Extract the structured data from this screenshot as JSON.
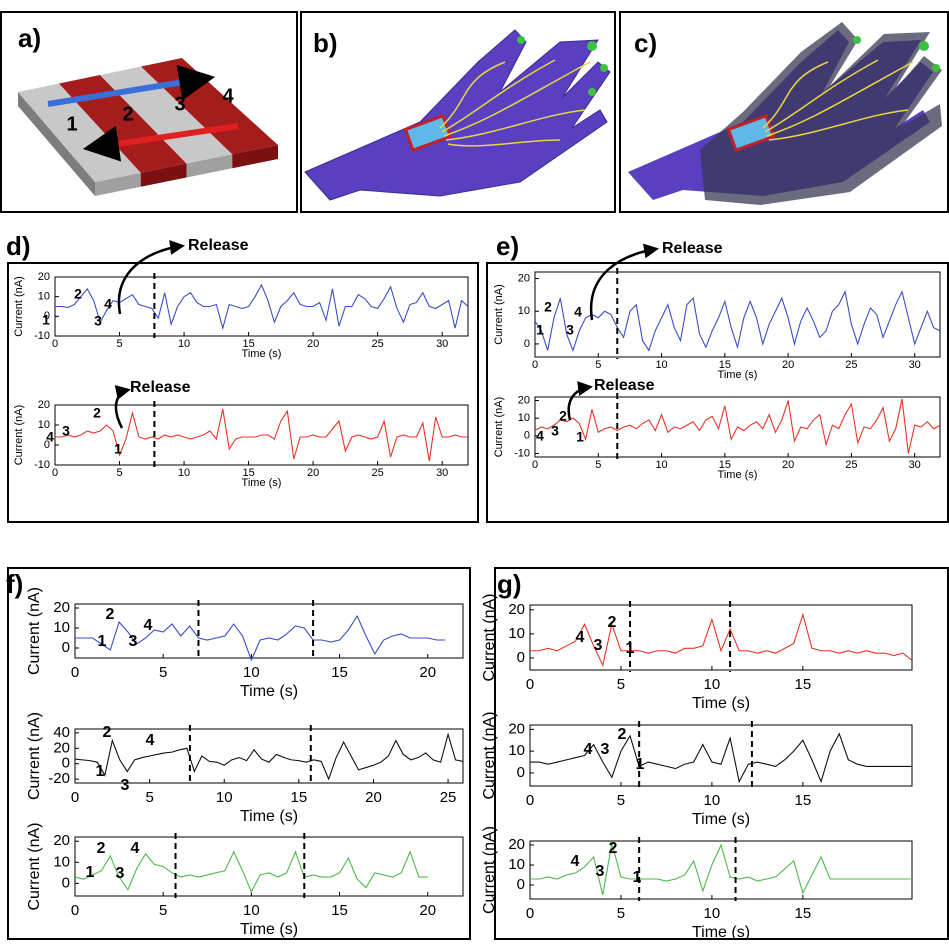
{
  "panel_labels": [
    "a)",
    "b)",
    "c)",
    "d)",
    "e)",
    "f)",
    "g)"
  ],
  "block_numbers": [
    "1",
    "2",
    "3",
    "4"
  ],
  "chart_data": [
    {
      "type": "line",
      "xlabel": "Time (s)",
      "ylabel": "Current (nA)",
      "color": "#3b4fc4",
      "xlim": [
        0,
        32
      ],
      "ylim": [
        -10,
        20
      ],
      "xticks": [
        0,
        5,
        10,
        15,
        20,
        25,
        30
      ],
      "yticks": [
        -10,
        0,
        10,
        20
      ],
      "vlines": [
        7.7
      ],
      "annotations": [
        "1",
        "2",
        "3",
        "4",
        "Release"
      ],
      "x": [
        0,
        0.5,
        1,
        1.5,
        2,
        2.5,
        3,
        3.5,
        4,
        4.5,
        5,
        5.5,
        6,
        6.5,
        7,
        7.5,
        8,
        8.5,
        9,
        9.5,
        10,
        10.5,
        11,
        11.5,
        12,
        12.5,
        13,
        13.5,
        14,
        14.5,
        15,
        15.5,
        16,
        16.5,
        17,
        17.5,
        18,
        18.5,
        19,
        19.5,
        20,
        20.5,
        21,
        21.5,
        22,
        22.5,
        23,
        23.5,
        24,
        24.5,
        25,
        25.5,
        26,
        26.5,
        27,
        27.5,
        28,
        28.5,
        29,
        29.5,
        30,
        30.5,
        31,
        31.5,
        32
      ],
      "values": [
        5,
        5,
        4.5,
        6,
        10,
        14,
        8,
        -3,
        3,
        8,
        7,
        9,
        11,
        6,
        5,
        4,
        -1,
        12,
        -4,
        5,
        10,
        12,
        7,
        5,
        5,
        6,
        -6,
        6,
        5,
        4,
        5,
        10,
        16,
        8,
        -3,
        5,
        8,
        12,
        6,
        5,
        5,
        7,
        -2,
        14,
        -5,
        5,
        5,
        11,
        9,
        5,
        4,
        9,
        15,
        4,
        -3,
        6,
        7,
        12,
        5,
        4,
        6,
        8,
        -6,
        8,
        5
      ]
    },
    {
      "type": "line",
      "xlabel": "Time (s)",
      "ylabel": "Current (nA)",
      "color": "#e8352a",
      "xlim": [
        0,
        32
      ],
      "ylim": [
        -10,
        20
      ],
      "xticks": [
        0,
        5,
        10,
        15,
        20,
        25,
        30
      ],
      "yticks": [
        -10,
        0,
        10,
        20
      ],
      "vlines": [
        7.7
      ],
      "annotations": [
        "4",
        "3",
        "2",
        "1",
        "Release"
      ],
      "x": [
        0,
        0.5,
        1,
        1.5,
        2,
        2.5,
        3,
        3.5,
        4,
        4.5,
        5,
        5.5,
        6,
        6.5,
        7,
        7.5,
        8,
        8.5,
        9,
        9.5,
        10,
        10.5,
        11,
        11.5,
        12,
        12.5,
        13,
        13.5,
        14,
        14.5,
        15,
        15.5,
        16,
        16.5,
        17,
        17.5,
        18,
        18.5,
        19,
        19.5,
        20,
        20.5,
        21,
        21.5,
        22,
        22.5,
        23,
        23.5,
        24,
        24.5,
        25,
        25.5,
        26,
        26.5,
        27,
        27.5,
        28,
        28.5,
        29,
        29.5,
        30,
        30.5,
        31,
        31.5,
        32
      ],
      "values": [
        4,
        4,
        5,
        4,
        5,
        7,
        6,
        7,
        10,
        7,
        -5,
        3,
        16,
        4,
        3,
        4,
        3,
        5,
        4,
        5,
        4,
        3,
        4,
        5,
        7,
        3,
        18,
        -2,
        3,
        4,
        4,
        4,
        5,
        5,
        3,
        12,
        17,
        -7,
        4,
        4,
        5,
        4,
        4,
        8,
        12,
        -3,
        4,
        5,
        4,
        3,
        4,
        12,
        -6,
        4,
        5,
        4,
        4,
        11,
        -8,
        14,
        4,
        4,
        5,
        4,
        4
      ]
    },
    {
      "type": "line",
      "xlabel": "Time (s)",
      "ylabel": "Current (nA)",
      "color": "#3b4fc4",
      "xlim": [
        0,
        32
      ],
      "ylim": [
        -4,
        22
      ],
      "xticks": [
        0,
        5,
        10,
        15,
        20,
        25,
        30
      ],
      "yticks": [
        0,
        10,
        20
      ],
      "vlines": [
        6.5
      ],
      "annotations": [
        "1",
        "2",
        "3",
        "4",
        "Release"
      ],
      "x": [
        0,
        0.5,
        1,
        1.5,
        2,
        2.5,
        3,
        3.5,
        4,
        4.5,
        5,
        5.5,
        6,
        6.5,
        7,
        7.5,
        8,
        8.5,
        9,
        9.5,
        10,
        10.5,
        11,
        11.5,
        12,
        12.5,
        13,
        13.5,
        14,
        14.5,
        15,
        15.5,
        16,
        16.5,
        17,
        17.5,
        18,
        18.5,
        19,
        19.5,
        20,
        20.5,
        21,
        21.5,
        22,
        22.5,
        23,
        23.5,
        24,
        24.5,
        25,
        25.5,
        26,
        26.5,
        27,
        27.5,
        28,
        28.5,
        29,
        29.5,
        30,
        30.5,
        31,
        31.5,
        32
      ],
      "values": [
        7,
        4,
        -2,
        8,
        14,
        3,
        -2,
        4,
        8,
        9,
        8,
        10,
        9,
        5,
        2,
        10,
        12,
        1,
        -2,
        4,
        8,
        12,
        5,
        1,
        12,
        14,
        3,
        -1,
        4,
        8,
        13,
        5,
        -1,
        8,
        13,
        8,
        0,
        6,
        10,
        14,
        8,
        0,
        7,
        11,
        7,
        2,
        4,
        10,
        12,
        16,
        6,
        0,
        6,
        11,
        9,
        2,
        7,
        12,
        16,
        8,
        0,
        5,
        10,
        5,
        4
      ]
    },
    {
      "type": "line",
      "xlabel": "Time (s)",
      "ylabel": "Current (nA)",
      "color": "#e8352a",
      "xlim": [
        0,
        32
      ],
      "ylim": [
        -12,
        22
      ],
      "xticks": [
        0,
        5,
        10,
        15,
        20,
        25,
        30
      ],
      "yticks": [
        -10,
        0,
        10,
        20
      ],
      "vlines": [
        6.5
      ],
      "annotations": [
        "4",
        "3",
        "2",
        "1",
        "Release"
      ],
      "x": [
        0,
        0.5,
        1,
        1.5,
        2,
        2.5,
        3,
        3.5,
        4,
        4.5,
        5,
        5.5,
        6,
        6.5,
        7,
        7.5,
        8,
        8.5,
        9,
        9.5,
        10,
        10.5,
        11,
        11.5,
        12,
        12.5,
        13,
        13.5,
        14,
        14.5,
        15,
        15.5,
        16,
        16.5,
        17,
        17.5,
        18,
        18.5,
        19,
        19.5,
        20,
        20.5,
        21,
        21.5,
        22,
        22.5,
        23,
        23.5,
        24,
        24.5,
        25,
        25.5,
        26,
        26.5,
        27,
        27.5,
        28,
        28.5,
        29,
        29.5,
        30,
        30.5,
        31,
        31.5,
        32
      ],
      "values": [
        3,
        5,
        4,
        6,
        9,
        8,
        10,
        7,
        -2,
        15,
        2,
        4,
        5,
        3,
        5,
        6,
        4,
        7,
        9,
        3,
        12,
        2,
        5,
        4,
        6,
        8,
        3,
        9,
        11,
        4,
        17,
        -2,
        5,
        3,
        6,
        8,
        4,
        12,
        2,
        9,
        20,
        -3,
        5,
        4,
        9,
        12,
        -5,
        6,
        4,
        12,
        18,
        -4,
        5,
        4,
        9,
        16,
        -3,
        4,
        21,
        -10,
        6,
        5,
        8,
        4,
        6
      ]
    },
    {
      "type": "line",
      "xlabel": "Time (s)",
      "ylabel": "Current (nA)",
      "color": "#3b4fc4",
      "xlim": [
        0,
        22
      ],
      "ylim": [
        -5,
        22
      ],
      "xticks": [
        0,
        5,
        10,
        15,
        20
      ],
      "yticks": [
        0,
        10,
        20
      ],
      "vlines": [
        7,
        13.5
      ],
      "annotations": [
        "1",
        "2",
        "3",
        "4"
      ],
      "x": [
        0,
        0.5,
        1,
        1.5,
        2,
        2.5,
        3,
        3.5,
        4,
        4.5,
        5,
        5.5,
        6,
        6.5,
        7,
        7.5,
        8,
        8.5,
        9,
        9.5,
        10,
        10.5,
        11,
        11.5,
        12,
        12.5,
        13,
        13.5,
        14,
        14.5,
        15,
        15.5,
        16,
        16.5,
        17,
        17.5,
        18,
        18.5,
        19,
        19.5,
        20,
        20.5,
        21
      ],
      "values": [
        5,
        5,
        5,
        2,
        -1,
        13,
        8,
        2,
        5,
        9,
        8,
        12,
        6,
        11,
        5,
        4,
        5,
        6,
        12,
        6,
        -6,
        4,
        5,
        4,
        7,
        11,
        10,
        4,
        4,
        3,
        4,
        9,
        16,
        6,
        -3,
        4,
        6,
        7,
        5,
        5,
        5,
        4,
        4
      ]
    },
    {
      "type": "line",
      "xlabel": "Time (s)",
      "ylabel": "Current (nA)",
      "color": "#111111",
      "xlim": [
        0,
        26
      ],
      "ylim": [
        -25,
        45
      ],
      "xticks": [
        0,
        5,
        10,
        15,
        20,
        25
      ],
      "yticks": [
        -20,
        0,
        20,
        40
      ],
      "vlines": [
        7.7,
        15.8
      ],
      "annotations": [
        "2",
        "1",
        "3",
        "4"
      ],
      "x": [
        0,
        0.5,
        1,
        1.5,
        2,
        2.5,
        3,
        3.5,
        4,
        4.5,
        5,
        5.5,
        6,
        6.5,
        7,
        7.5,
        8,
        8.5,
        9,
        9.5,
        10,
        10.5,
        11,
        11.5,
        12,
        12.5,
        13,
        13.5,
        14,
        14.5,
        15,
        15.5,
        16,
        16.5,
        17,
        17.5,
        18,
        18.5,
        19,
        19.5,
        20,
        20.5,
        21,
        21.5,
        22,
        22.5,
        23,
        23.5,
        24,
        24.5,
        25,
        25.5,
        26
      ],
      "values": [
        6,
        5,
        4,
        2,
        -15,
        30,
        5,
        -10,
        5,
        8,
        10,
        12,
        14,
        15,
        18,
        20,
        -10,
        10,
        3,
        2,
        -2,
        5,
        8,
        4,
        18,
        6,
        2,
        12,
        8,
        5,
        4,
        2,
        5,
        3,
        -20,
        8,
        28,
        10,
        -8,
        -5,
        -2,
        2,
        10,
        30,
        12,
        5,
        8,
        14,
        5,
        2,
        38,
        5,
        3
      ]
    },
    {
      "type": "line",
      "xlabel": "Time (s)",
      "ylabel": "Current (nA)",
      "color": "#4cbb4c",
      "xlim": [
        0,
        22
      ],
      "ylim": [
        -6,
        22
      ],
      "xticks": [
        0,
        5,
        10,
        15,
        20
      ],
      "yticks": [
        0,
        10,
        20
      ],
      "vlines": [
        5.7,
        13
      ],
      "annotations": [
        "2",
        "1",
        "3",
        "4"
      ],
      "x": [
        0,
        0.5,
        1,
        1.5,
        2,
        2.5,
        3,
        3.5,
        4,
        4.5,
        5,
        5.5,
        6,
        6.5,
        7,
        7.5,
        8,
        8.5,
        9,
        9.5,
        10,
        10.5,
        11,
        11.5,
        12,
        12.5,
        13,
        13.5,
        14,
        14.5,
        15,
        15.5,
        16,
        16.5,
        17,
        17.5,
        18,
        18.5,
        19,
        19.5,
        20
      ],
      "values": [
        3,
        2,
        4,
        6,
        13,
        3,
        -3,
        7,
        14,
        9,
        8,
        5,
        3,
        4,
        3,
        4,
        5,
        6,
        15,
        6,
        -4,
        4,
        5,
        3,
        5,
        15,
        3,
        4,
        3,
        3,
        5,
        12,
        2,
        -2,
        5,
        4,
        3,
        5,
        15,
        3,
        3
      ]
    },
    {
      "type": "line",
      "xlabel": "Time (s)",
      "ylabel": "Current (nA)",
      "color": "#e8352a",
      "xlim": [
        0,
        21
      ],
      "ylim": [
        -5,
        22
      ],
      "xticks": [
        0,
        5,
        10,
        15
      ],
      "yticks": [
        0,
        10,
        20
      ],
      "vlines": [
        5.5,
        11
      ],
      "annotations": [
        "4",
        "3",
        "2",
        "1"
      ],
      "x": [
        0,
        0.5,
        1,
        1.5,
        2,
        2.5,
        3,
        3.5,
        4,
        4.5,
        5,
        5.5,
        6,
        6.5,
        7,
        7.5,
        8,
        8.5,
        9,
        9.5,
        10,
        10.5,
        11,
        11.5,
        12,
        12.5,
        13,
        13.5,
        14,
        14.5,
        15,
        15.5,
        16,
        16.5,
        17,
        17.5,
        18,
        18.5,
        19,
        19.5,
        20,
        20.5,
        21
      ],
      "values": [
        3,
        3,
        4,
        3,
        5,
        7,
        14,
        5,
        -3,
        14,
        3,
        3,
        3,
        2,
        3,
        3,
        2,
        4,
        4,
        5,
        16,
        3,
        12,
        3,
        3,
        2,
        3,
        2,
        4,
        6,
        18,
        4,
        3,
        3,
        2,
        3,
        2,
        3,
        2,
        2,
        1,
        2,
        -1
      ]
    },
    {
      "type": "line",
      "xlabel": "Time (s)",
      "ylabel": "Current (nA)",
      "color": "#111111",
      "xlim": [
        0,
        21
      ],
      "ylim": [
        -6,
        22
      ],
      "xticks": [
        0,
        5,
        10,
        15
      ],
      "yticks": [
        0,
        10,
        20
      ],
      "vlines": [
        6,
        12.2
      ],
      "annotations": [
        "4",
        "3",
        "2",
        "1"
      ],
      "x": [
        0,
        0.5,
        1,
        1.5,
        2,
        2.5,
        3,
        3.5,
        4,
        4.5,
        5,
        5.5,
        6,
        6.5,
        7,
        7.5,
        8,
        8.5,
        9,
        9.5,
        10,
        10.5,
        11,
        11.5,
        12,
        12.5,
        13,
        13.5,
        14,
        14.5,
        15,
        15.5,
        16,
        16.5,
        17,
        17.5,
        18,
        18.5,
        19,
        19.5,
        20,
        20.5,
        21
      ],
      "values": [
        5,
        5,
        4,
        5,
        6,
        7,
        8,
        13,
        5,
        -2,
        10,
        17,
        3,
        5,
        4,
        3,
        2,
        4,
        5,
        13,
        5,
        4,
        16,
        -4,
        4,
        5,
        4,
        3,
        6,
        10,
        15,
        6,
        -4,
        10,
        18,
        6,
        4,
        3,
        3,
        3,
        3,
        3,
        3
      ]
    },
    {
      "type": "line",
      "xlabel": "Time (s)",
      "ylabel": "Current (nA)",
      "color": "#4cbb4c",
      "xlim": [
        0,
        21
      ],
      "ylim": [
        -7,
        22
      ],
      "xticks": [
        0,
        5,
        10,
        15
      ],
      "yticks": [
        0,
        10,
        20
      ],
      "vlines": [
        6,
        11.3
      ],
      "annotations": [
        "4",
        "3",
        "2",
        "1"
      ],
      "x": [
        0,
        0.5,
        1,
        1.5,
        2,
        2.5,
        3,
        3.5,
        4,
        4.5,
        5,
        5.5,
        6,
        6.5,
        7,
        7.5,
        8,
        8.5,
        9,
        9.5,
        10,
        10.5,
        11,
        11.5,
        12,
        12.5,
        13,
        13.5,
        14,
        14.5,
        15,
        15.5,
        16,
        16.5,
        17,
        17.5,
        18,
        18.5,
        19,
        19.5,
        20,
        20.5,
        21
      ],
      "values": [
        3,
        3,
        4,
        3,
        5,
        6,
        9,
        14,
        -5,
        21,
        4,
        3,
        3,
        3,
        3,
        2,
        3,
        5,
        12,
        -3,
        10,
        20,
        4,
        3,
        4,
        2,
        3,
        4,
        8,
        12,
        -4,
        5,
        14,
        3,
        3,
        3,
        3,
        3,
        3,
        3,
        3,
        3,
        3
      ]
    }
  ]
}
